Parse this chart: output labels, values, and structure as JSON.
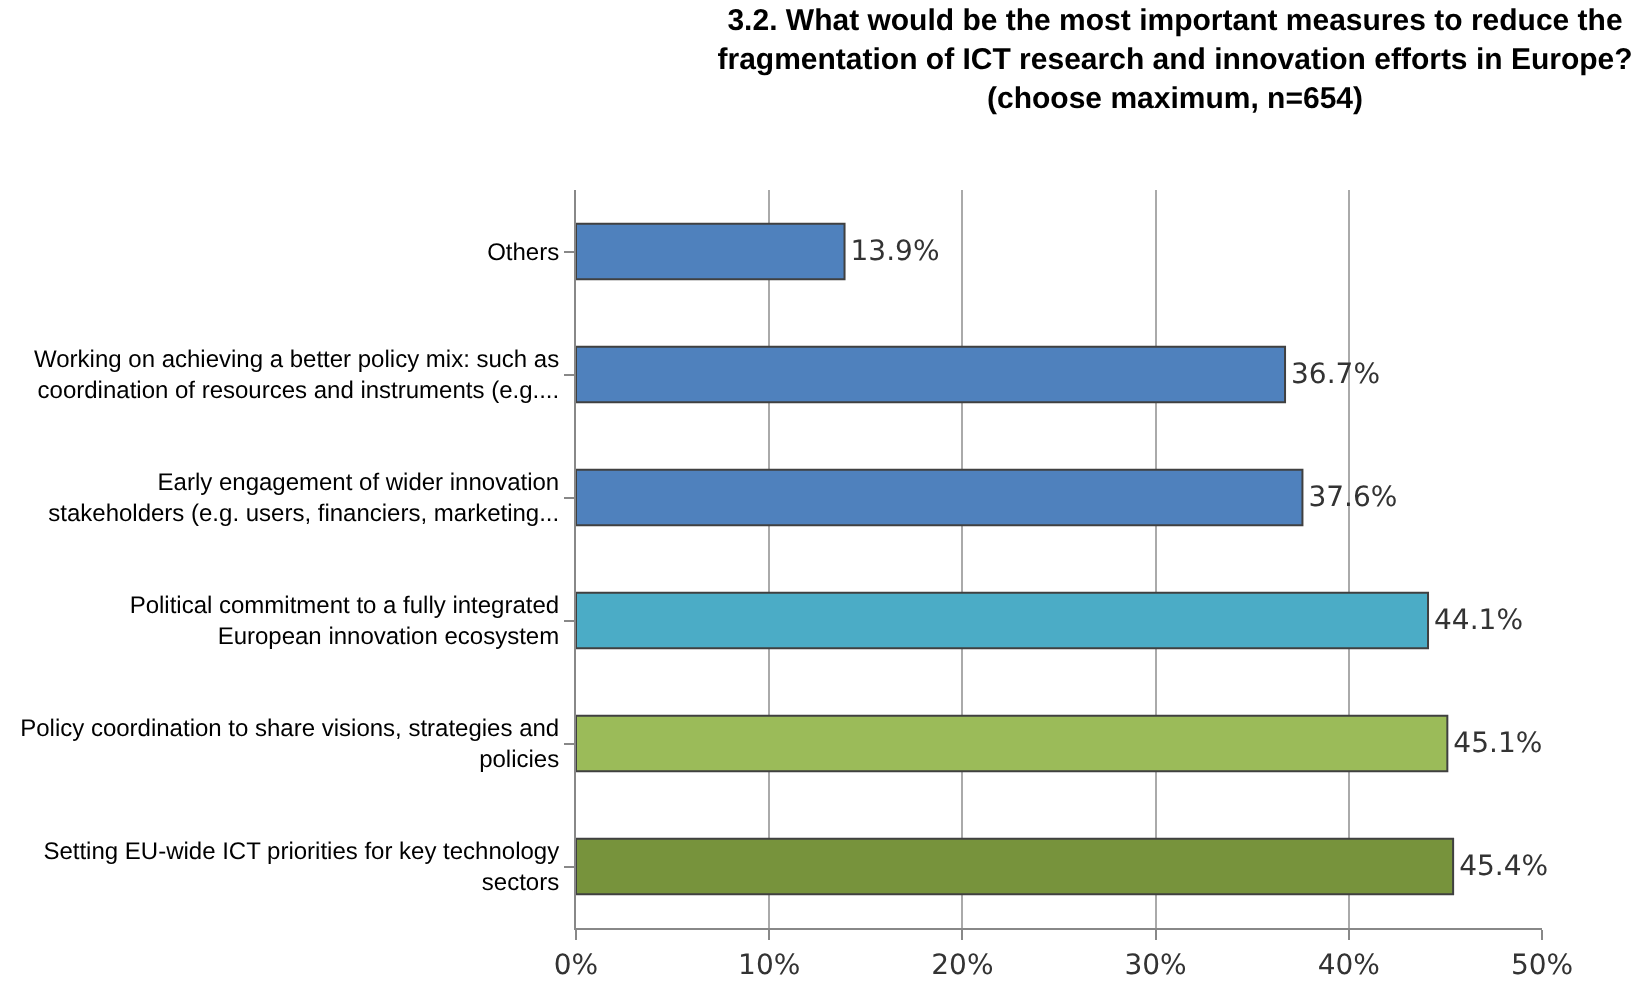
{
  "chart_data": {
    "type": "bar",
    "orientation": "horizontal",
    "title": "3.2. What would be the most important measures to reduce the\nfragmentation of ICT research and innovation efforts in Europe?\n(choose maximum, n=654)",
    "categories": [
      "Others",
      "Working on achieving a better policy mix: such as\ncoordination of resources and instruments (e.g....",
      "Early engagement of wider innovation\nstakeholders (e.g. users, financiers, marketing...",
      "Political commitment to a fully integrated\nEuropean innovation ecosystem",
      "Policy coordination to share visions, strategies and\npolicies",
      "Setting EU-wide ICT priorities for key technology\nsectors"
    ],
    "values": [
      13.9,
      36.7,
      37.6,
      44.1,
      45.1,
      45.4
    ],
    "value_labels": [
      "13.9%",
      "36.7%",
      "37.6%",
      "44.1%",
      "45.1%",
      "45.4%"
    ],
    "colors": [
      "#4f81bd",
      "#4f81bd",
      "#4f81bd",
      "#4bacc6",
      "#9bbb59",
      "#77933c"
    ],
    "xlim": [
      0,
      50
    ],
    "xticks": [
      {
        "value": 0,
        "label": "0%"
      },
      {
        "value": 10,
        "label": "10%"
      },
      {
        "value": 20,
        "label": "20%"
      },
      {
        "value": 30,
        "label": "30%"
      },
      {
        "value": 40,
        "label": "40%"
      },
      {
        "value": 50,
        "label": "50%"
      }
    ],
    "grid": "x",
    "legend": false
  }
}
